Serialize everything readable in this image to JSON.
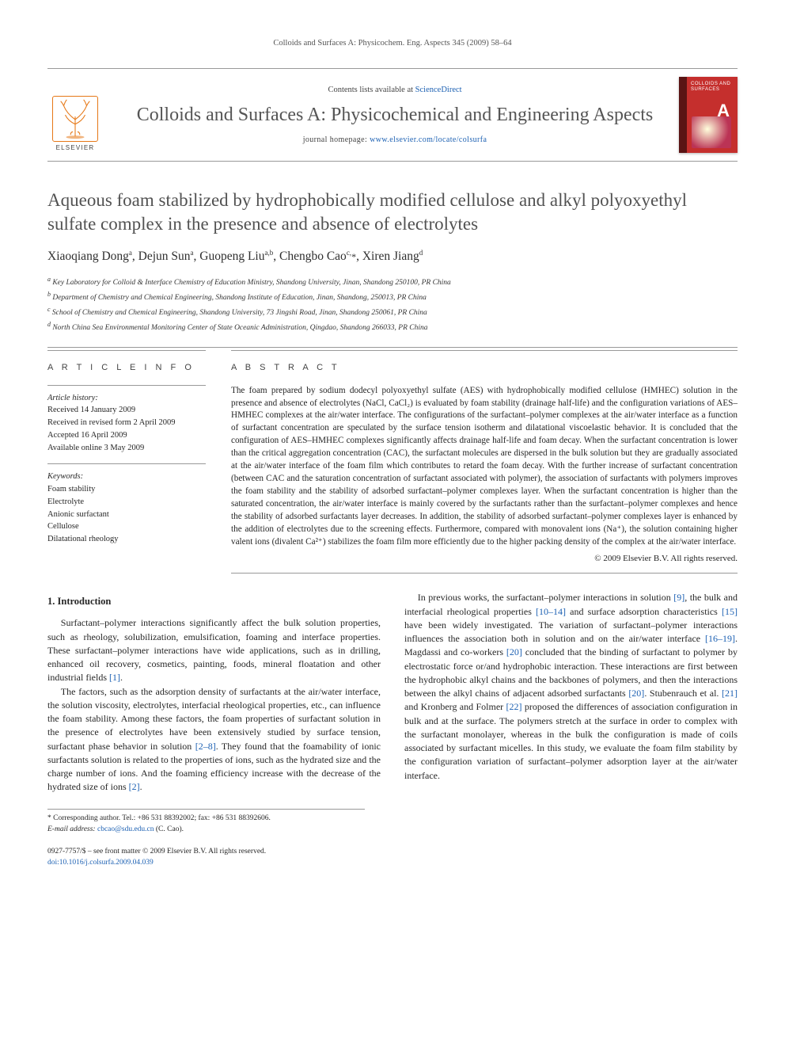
{
  "running_header": "Colloids and Surfaces A: Physicochem. Eng. Aspects 345 (2009) 58–64",
  "masthead": {
    "contents_prefix": "Contents lists available at ",
    "contents_link": "ScienceDirect",
    "journal_name": "Colloids and Surfaces A: Physicochemical and Engineering Aspects",
    "homepage_prefix": "journal homepage: ",
    "homepage_url": "www.elsevier.com/locate/colsurfa",
    "publisher_word": "ELSEVIER",
    "cover_label": "COLLOIDS AND SURFACES",
    "cover_letter": "A"
  },
  "article": {
    "title": "Aqueous foam stabilized by hydrophobically modified cellulose and alkyl polyoxyethyl sulfate complex in the presence and absence of electrolytes",
    "authors_html": "Xiaoqiang Dong<sup>a</sup>, Dejun Sun<sup>a</sup>, Guopeng Liu<sup>a,b</sup>, Chengbo Cao<sup>c,</sup><span class='corr'>*</span>, Xiren Jiang<sup>d</sup>",
    "affiliations": [
      "a Key Laboratory for Colloid & Interface Chemistry of Education Ministry, Shandong University, Jinan, Shandong 250100, PR China",
      "b Department of Chemistry and Chemical Engineering, Shandong Institute of Education, Jinan, Shandong, 250013, PR China",
      "c School of Chemistry and Chemical Engineering, Shandong University, 73 Jingshi Road, Jinan, Shandong 250061, PR China",
      "d North China Sea Environmental Monitoring Center of State Oceanic Administration, Qingdao, Shandong 266033, PR China"
    ]
  },
  "info": {
    "heading": "A R T I C L E   I N F O",
    "history_label": "Article history:",
    "history": [
      "Received 14 January 2009",
      "Received in revised form 2 April 2009",
      "Accepted 16 April 2009",
      "Available online 3 May 2009"
    ],
    "keywords_label": "Keywords:",
    "keywords": [
      "Foam stability",
      "Electrolyte",
      "Anionic surfactant",
      "Cellulose",
      "Dilatational rheology"
    ]
  },
  "abstract": {
    "heading": "A B S T R A C T",
    "text": "The foam prepared by sodium dodecyl polyoxyethyl sulfate (AES) with hydrophobically modified cellulose (HMHEC) solution in the presence and absence of electrolytes (NaCl, CaCl₂) is evaluated by foam stability (drainage half-life) and the configuration variations of AES–HMHEC complexes at the air/water interface. The configurations of the surfactant–polymer complexes at the air/water interface as a function of surfactant concentration are speculated by the surface tension isotherm and dilatational viscoelastic behavior. It is concluded that the configuration of AES–HMHEC complexes significantly affects drainage half-life and foam decay. When the surfactant concentration is lower than the critical aggregation concentration (CAC), the surfactant molecules are dispersed in the bulk solution but they are gradually associated at the air/water interface of the foam film which contributes to retard the foam decay. With the further increase of surfactant concentration (between CAC and the saturation concentration of surfactant associated with polymer), the association of surfactants with polymers improves the foam stability and the stability of adsorbed surfactant–polymer complexes layer. When the surfactant concentration is higher than the saturated concentration, the air/water interface is mainly covered by the surfactants rather than the surfactant–polymer complexes and hence the stability of adsorbed surfactants layer decreases. In addition, the stability of adsorbed surfactant–polymer complexes layer is enhanced by the addition of electrolytes due to the screening effects. Furthermore, compared with monovalent ions (Na⁺), the solution containing higher valent ions (divalent Ca²⁺) stabilizes the foam film more efficiently due to the higher packing density of the complex at the air/water interface.",
    "copyright": "© 2009 Elsevier B.V. All rights reserved."
  },
  "body": {
    "section1_heading": "1.  Introduction",
    "p1": "Surfactant–polymer interactions significantly affect the bulk solution properties, such as rheology, solubilization, emulsification, foaming and interface properties. These surfactant–polymer interactions have wide applications, such as in drilling, enhanced oil recovery, cosmetics, painting, foods, mineral floatation and other industrial fields ",
    "p1_ref": "[1]",
    "p1_tail": ".",
    "p2": "The factors, such as the adsorption density of surfactants at the air/water interface, the solution viscosity, electrolytes, interfacial rheological properties, etc., can influence the foam stability. Among these factors, the foam properties of surfactant solution in the presence of electrolytes have been extensively studied by surface tension, surfactant phase behavior in solution ",
    "p2_ref": "[2–8]",
    "p2_mid": ". They found that the foamability of ionic surfactants solution is related to the properties of ions, such as the hydrated size and the charge number of ions. And the foaming efficiency increase with the decrease of the hydrated size of ions ",
    "p2_ref2": "[2]",
    "p2_tail": ".",
    "p3a": "In previous works, the surfactant–polymer interactions in solution ",
    "p3_ref1": "[9]",
    "p3b": ", the bulk and interfacial rheological properties ",
    "p3_ref2": "[10–14]",
    "p3c": " and surface adsorption characteristics ",
    "p3_ref3": "[15]",
    "p3d": " have been widely investigated. The variation of surfactant–polymer interactions influences the association both in solution and on the air/water interface ",
    "p3_ref4": "[16–19]",
    "p3e": ". Magdassi and co-workers ",
    "p3_ref5": "[20]",
    "p3f": " concluded that the binding of surfactant to polymer by electrostatic force or/and hydrophobic interaction. These interactions are first between the hydrophobic alkyl chains and the backbones of polymers, and then the interactions between the alkyl chains of adjacent adsorbed surfactants ",
    "p3_ref6": "[20]",
    "p3g": ". Stubenrauch et al. ",
    "p3_ref7": "[21]",
    "p3h": " and Kronberg and Folmer ",
    "p3_ref8": "[22]",
    "p3i": " proposed the differences of association configuration in bulk and at the surface. The polymers stretch at the surface in order to complex with the surfactant monolayer, whereas in the bulk the configuration is made of coils associated by surfactant micelles. In this study, we evaluate the foam film stability by the configuration variation of surfactant–polymer adsorption layer at the air/water interface."
  },
  "footnotes": {
    "corr": "* Corresponding author. Tel.: +86 531 88392002; fax: +86 531 88392606.",
    "email_label": "E-mail address: ",
    "email": "cbcao@sdu.edu.cn",
    "email_tail": " (C. Cao)."
  },
  "footer": {
    "line1": "0927-7757/$ – see front matter © 2009 Elsevier B.V. All rights reserved.",
    "doi": "doi:10.1016/j.colsurfa.2009.04.039"
  },
  "colors": {
    "link": "#1d61b3",
    "rule": "#999999",
    "elsevier_orange": "#e67817",
    "cover_red": "#c52f2d"
  }
}
